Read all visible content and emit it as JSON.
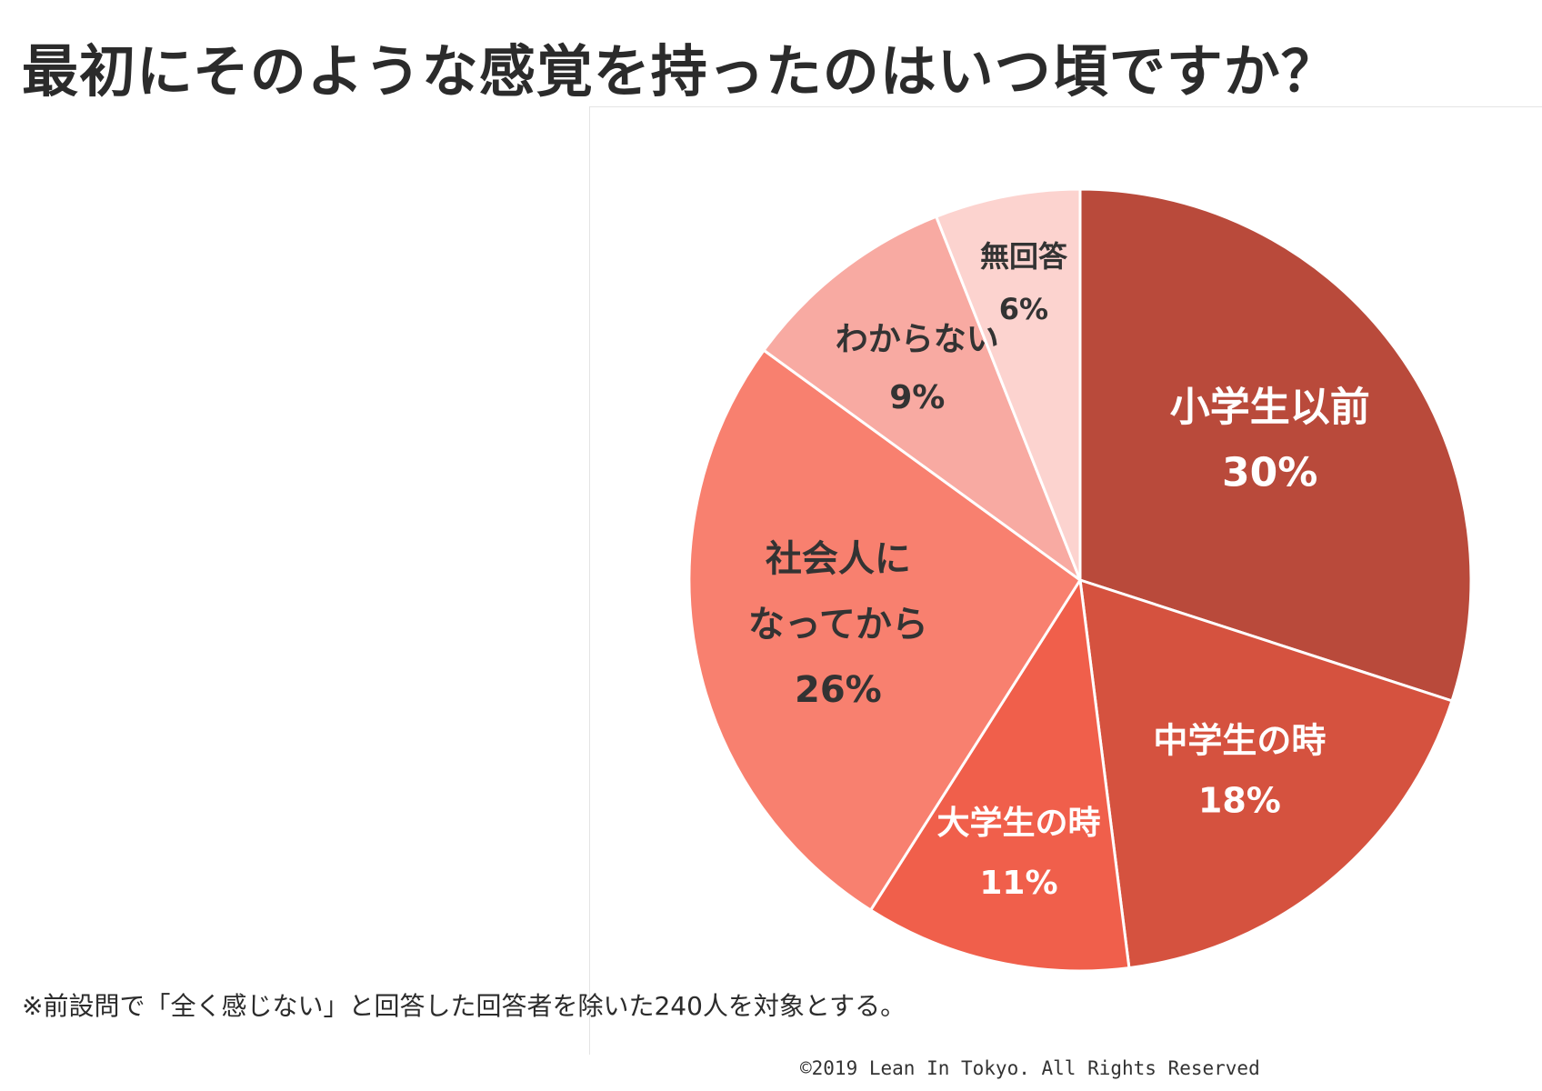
{
  "title": "最初にそのような感覚を持ったのはいつ頃ですか？",
  "footnote": "※前設問で「全く感じない」と回答した回答者を除いた240人を対象とする。",
  "copyright": "©2019 Lean In Tokyo. All Rights Reserved",
  "chart_data": {
    "type": "pie",
    "title": "",
    "start": "12 o'clock",
    "direction": "clockwise",
    "slices": [
      {
        "label": [
          "小学生以前"
        ],
        "value_label": "30%",
        "value": 30,
        "color": "#b94a3b",
        "text_color": "#ffffff"
      },
      {
        "label": [
          "中学生の時"
        ],
        "value_label": "18%",
        "value": 18,
        "color": "#d5523f",
        "text_color": "#ffffff"
      },
      {
        "label": [
          "大学生の時"
        ],
        "value_label": "11%",
        "value": 11,
        "color": "#f05f4b",
        "text_color": "#ffffff"
      },
      {
        "label": [
          "社会人に",
          "なってから"
        ],
        "value_label": "26%",
        "value": 26,
        "color": "#f8806f",
        "text_color": "#333333"
      },
      {
        "label": [
          "わからない"
        ],
        "value_label": "9%",
        "value": 9,
        "color": "#f8aaa2",
        "text_color": "#333333"
      },
      {
        "label": [
          "無回答"
        ],
        "value_label": "6%",
        "value": 6,
        "color": "#fcd3cf",
        "text_color": "#333333"
      }
    ]
  }
}
